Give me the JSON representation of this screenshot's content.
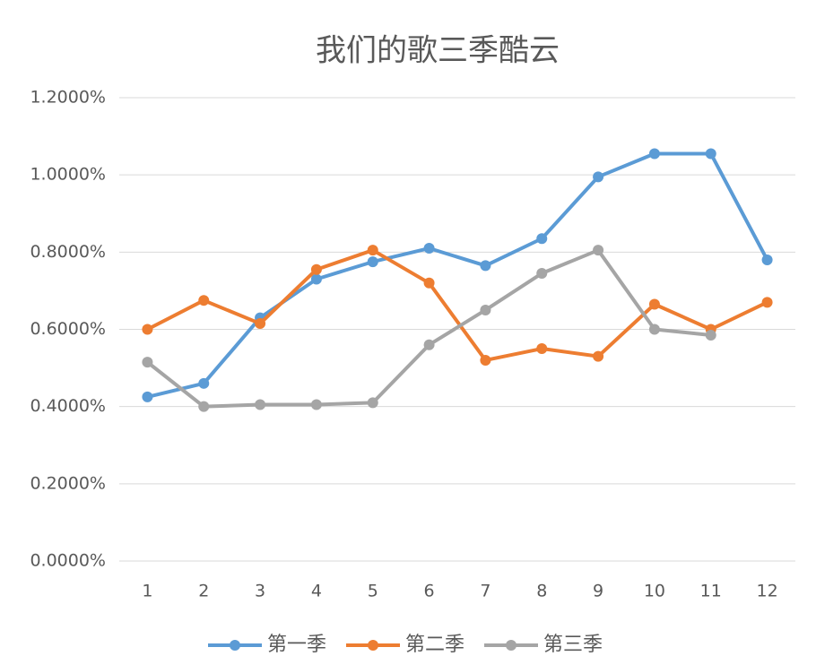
{
  "chart_data": {
    "type": "line",
    "title": "我们的歌三季酷云",
    "categories": [
      "1",
      "2",
      "3",
      "4",
      "5",
      "6",
      "7",
      "8",
      "9",
      "10",
      "11",
      "12"
    ],
    "series": [
      {
        "name": "第一季",
        "color": "#5b9bd5",
        "values": [
          0.425,
          0.46,
          0.63,
          0.73,
          0.775,
          0.81,
          0.765,
          0.835,
          0.995,
          1.055,
          1.055,
          0.78
        ]
      },
      {
        "name": "第二季",
        "color": "#ed7d31",
        "values": [
          0.6,
          0.675,
          0.615,
          0.755,
          0.805,
          0.72,
          0.52,
          0.55,
          0.53,
          0.665,
          0.6,
          0.67
        ]
      },
      {
        "name": "第三季",
        "color": "#a5a5a5",
        "values": [
          0.515,
          0.4,
          0.405,
          0.405,
          0.41,
          0.56,
          0.65,
          0.745,
          0.805,
          0.6,
          0.585,
          null
        ]
      }
    ],
    "ylim": [
      0,
      1.2
    ],
    "yticks": [
      {
        "value": 0,
        "label": "0.0000%"
      },
      {
        "value": 0.2,
        "label": "0.2000%"
      },
      {
        "value": 0.4,
        "label": "0.4000%"
      },
      {
        "value": 0.6,
        "label": "0.6000%"
      },
      {
        "value": 0.8,
        "label": "0.8000%"
      },
      {
        "value": 1.0,
        "label": "1.0000%"
      },
      {
        "value": 1.2,
        "label": "1.2000%"
      }
    ],
    "grid": true,
    "legend": "bottom"
  }
}
